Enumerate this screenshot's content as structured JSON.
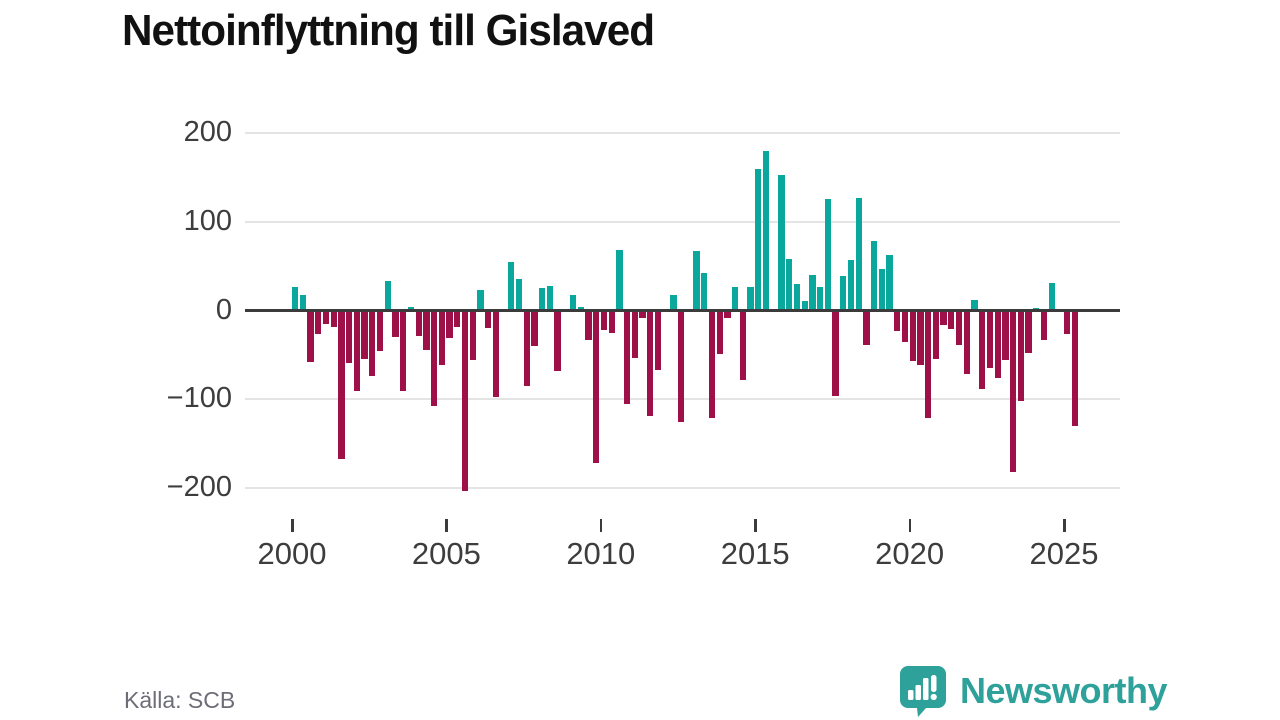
{
  "title": "Nettoinflyttning till Gislaved",
  "source": "Källa: SCB",
  "brand": {
    "name": "Newsworthy",
    "logo_icon": "speech-bubble-with-bar-chart-and-exclamation"
  },
  "colors": {
    "positive_bar": "#0aa79d",
    "negative_bar": "#9e1048",
    "zero_line": "#3b3b3b",
    "gridline": "#e4e4e4",
    "axis_text": "#3d3d3d",
    "source_text": "#6d6d78",
    "brand_teal": "#2ea19a",
    "title_text": "#111111"
  },
  "chart_data": {
    "type": "bar",
    "title": "Nettoinflyttning till Gislaved",
    "frequency": "quarterly",
    "x_start": "2000 Q1",
    "x_end": "2025 Q2",
    "x_tick_labels": [
      "2000",
      "2005",
      "2010",
      "2015",
      "2020",
      "2025"
    ],
    "y_tick_labels": [
      "200",
      "100",
      "0",
      "−100",
      "−200"
    ],
    "y_tick_values": [
      200,
      100,
      0,
      -100,
      -200
    ],
    "ylim": [
      -230,
      210
    ],
    "grid": "horizontal",
    "legend": "none",
    "values": [
      26,
      18,
      -58,
      -27,
      -15,
      -19,
      -167,
      -59,
      -91,
      -55,
      -74,
      -46,
      33,
      -30,
      -91,
      4,
      -29,
      -45,
      -108,
      -62,
      -31,
      -19,
      -204,
      -56,
      23,
      -20,
      -98,
      0,
      55,
      35,
      -85,
      -40,
      25,
      28,
      -68,
      0,
      18,
      4,
      -33,
      -172,
      -22,
      -25,
      68,
      -105,
      -54,
      -8,
      -119,
      -67,
      0,
      18,
      -126,
      0,
      67,
      42,
      -121,
      -49,
      -8,
      26,
      -78,
      26,
      160,
      180,
      0,
      153,
      58,
      30,
      11,
      40,
      27,
      126,
      -96,
      39,
      57,
      127,
      -39,
      78,
      47,
      63,
      -23,
      -35,
      -57,
      -61,
      -121,
      -55,
      -16,
      -21,
      -39,
      -72,
      12,
      -88,
      -65,
      -76,
      -56,
      -182,
      -102,
      -48,
      3,
      -33,
      31,
      0,
      -26,
      -130
    ]
  }
}
